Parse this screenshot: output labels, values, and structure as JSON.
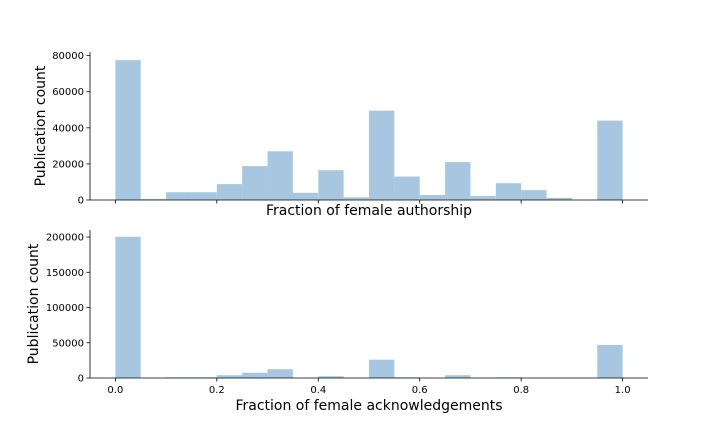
{
  "chart_data": [
    {
      "type": "bar",
      "subtype": "histogram",
      "color": "#a6c7df",
      "xlabel": "Fraction of female authorship",
      "ylabel": "Publication count",
      "xlim": [
        -0.05,
        1.05
      ],
      "ylim": [
        0,
        82000
      ],
      "x_ticks_labeled": false,
      "x_ticks": [
        0.0,
        0.2,
        0.4,
        0.6,
        0.8,
        1.0
      ],
      "y_ticks": [
        0,
        20000,
        40000,
        60000,
        80000
      ],
      "y_tick_labels": [
        "0",
        "20000",
        "40000",
        "60000",
        "80000"
      ],
      "bin_width": 0.05,
      "bins": [
        0.0,
        0.05,
        0.1,
        0.15,
        0.2,
        0.25,
        0.3,
        0.35,
        0.4,
        0.45,
        0.5,
        0.55,
        0.6,
        0.65,
        0.7,
        0.75,
        0.8,
        0.85,
        0.9,
        0.95
      ],
      "values": [
        77500,
        500,
        4300,
        4300,
        8800,
        18800,
        27000,
        4000,
        16500,
        1500,
        49500,
        13000,
        2800,
        21000,
        2200,
        9300,
        5500,
        1200,
        0,
        44000
      ],
      "grid": false
    },
    {
      "type": "bar",
      "subtype": "histogram",
      "color": "#a6c7df",
      "xlabel": "Fraction of female acknowledgements",
      "ylabel": "Publication count",
      "xlim": [
        -0.05,
        1.05
      ],
      "ylim": [
        0,
        210000
      ],
      "x_ticks": [
        0.0,
        0.2,
        0.4,
        0.6,
        0.8,
        1.0
      ],
      "x_tick_labels": [
        "0.0",
        "0.2",
        "0.4",
        "0.6",
        "0.8",
        "1.0"
      ],
      "y_ticks": [
        0,
        50000,
        100000,
        150000,
        200000
      ],
      "y_tick_labels": [
        "0",
        "50000",
        "100000",
        "150000",
        "200000"
      ],
      "bin_width": 0.05,
      "bins": [
        0.0,
        0.05,
        0.1,
        0.15,
        0.2,
        0.25,
        0.3,
        0.35,
        0.4,
        0.45,
        0.5,
        0.55,
        0.6,
        0.65,
        0.7,
        0.75,
        0.8,
        0.85,
        0.9,
        0.95
      ],
      "values": [
        200500,
        0,
        1000,
        1000,
        4000,
        7500,
        12500,
        0,
        2500,
        0,
        26000,
        1000,
        0,
        4000,
        0,
        1000,
        0,
        0,
        0,
        47000
      ],
      "grid": false
    }
  ]
}
